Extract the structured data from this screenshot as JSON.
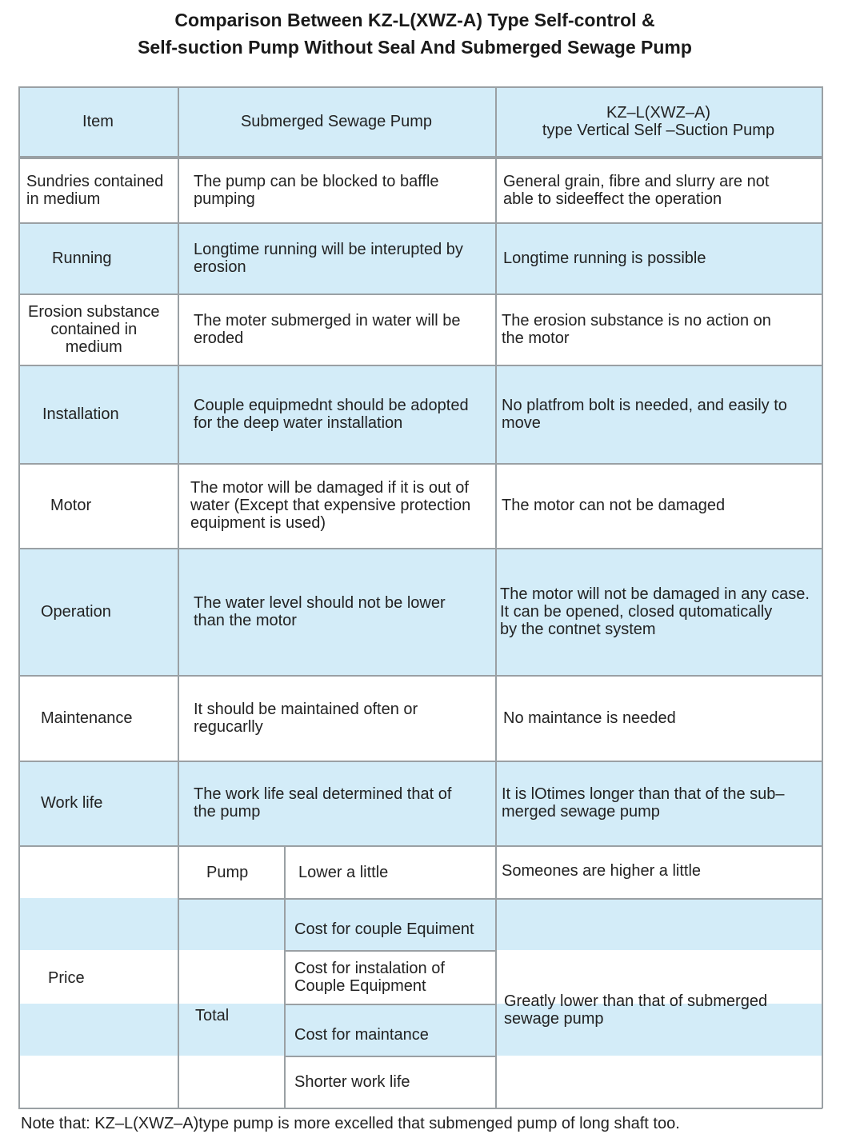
{
  "title": {
    "line1": "Comparison Between KZ-L(XWZ-A) Type Self-control &",
    "line2": "Self-suction Pump Without Seal And Submerged Sewage Pump"
  },
  "colors": {
    "band": "#d3ecf8",
    "border": "#9aa0a4"
  },
  "header": {
    "item": "Item",
    "submerged": "Submerged Sewage Pump",
    "kz": "KZ–L(XWZ–A)\ntype Vertical Self –Suction Pump"
  },
  "rows": [
    {
      "item": "Sundries contained\nin medium",
      "submerged": "The pump can be blocked to baffle\npumping",
      "kz": "General grain, fibre and slurry are not\nable to sideeffect the operation"
    },
    {
      "item": "Running",
      "submerged": "Longtime running will be interupted by\nerosion",
      "kz": "Longtime running is possible"
    },
    {
      "item": "Erosion substance\ncontained in\nmedium",
      "submerged": "The moter submerged in water will be\neroded",
      "kz": "The erosion substance is no action on\nthe motor"
    },
    {
      "item": "Installation",
      "submerged": "Couple equipmednt should be adopted\nfor  the  deep  water  installation",
      "kz": "No platfrom bolt is needed, and easily to\nmove"
    },
    {
      "item": "Motor",
      "submerged": "The motor will be damaged if it is out of\nwater (Except that expensive protection\nequipment is used)",
      "kz": "The motor can not be damaged"
    },
    {
      "item": "Operation",
      "submerged": "The water level should not be lower\nthan the motor",
      "kz": "The motor will not be damaged in any case.\nIt  can  be  opened,  closed  qutomatically\nby the contnet system"
    },
    {
      "item": "Maintenance",
      "submerged": "It should be maintained often or\nregucarlly",
      "kz": "No maintance is needed"
    },
    {
      "item": "Work life",
      "submerged": "The work life seal determined that of\nthe pump",
      "kz": "It is lOtimes longer than that of the sub–\nmerged sewage pump"
    }
  ],
  "price": {
    "label": "Price",
    "pump_label": "Pump",
    "pump_value": "Lower a little",
    "pump_kz": "Someones are higher a little",
    "total_label": "Total",
    "total_items": [
      "Cost for couple Equiment",
      "Cost for instalation of\nCouple Equipment",
      "Cost for maintance",
      "Shorter work life"
    ],
    "total_kz": "Greatly lower than that of submerged\nsewage pump"
  },
  "note": "Note that: KZ–L(XWZ–A)type pump is more excelled that submenged pump of long shaft too."
}
